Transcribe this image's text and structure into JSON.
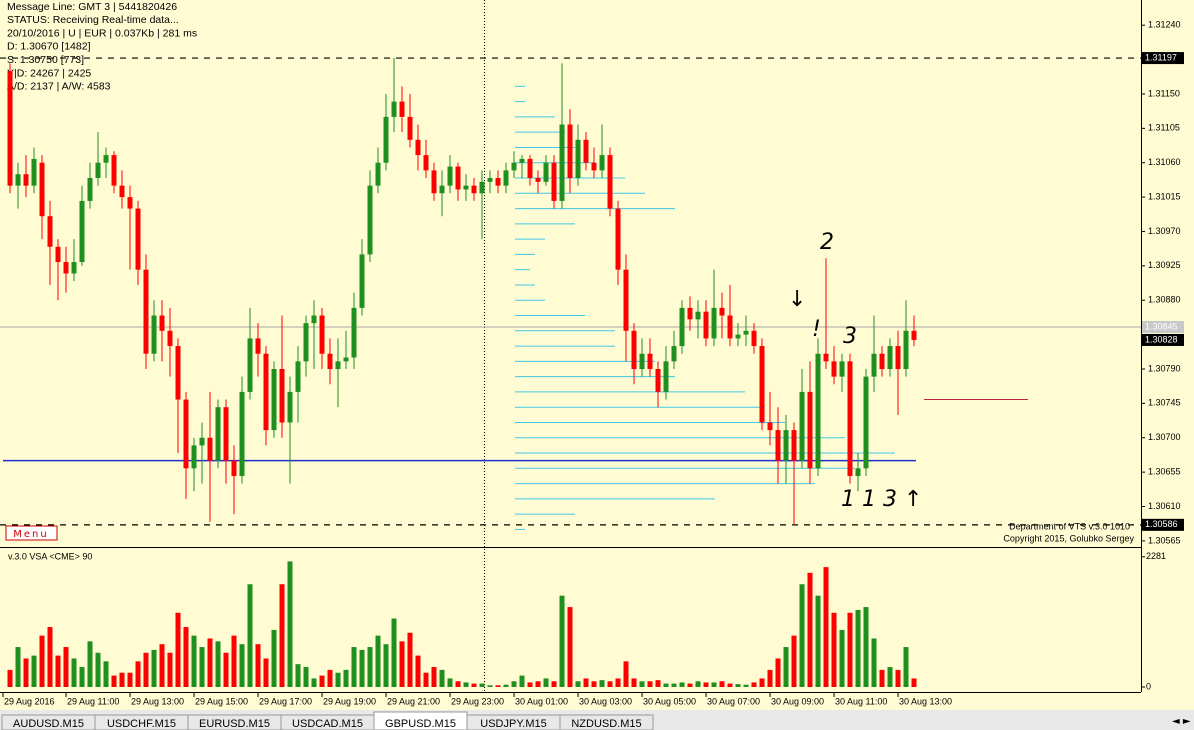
{
  "header": {
    "lines": [
      "Message Line: GMT 3 | 5441820426",
      "STATUS:  Receiving Real-time data...",
      "20/10/2016 | U | EUR | 0.037Kb | 281 ms",
      "D: 1.30670 [1482]",
      "S: 1.30750 [773]",
      "Y|D: 24267 | 2425",
      "A/D: 2137 | A/W: 4583"
    ]
  },
  "menu": "Menu",
  "watermark": [
    "Department of VTS v.3.0 1010",
    "Copyright 2015, Golubko Sergey"
  ],
  "annotations": [
    "↓",
    "!",
    "2",
    "3",
    "1 1 3",
    "↑"
  ],
  "x_labels": [
    "29 Aug 2016",
    "29 Aug 11:00",
    "29 Aug 13:00",
    "29 Aug 15:00",
    "29 Aug 17:00",
    "29 Aug 19:00",
    "29 Aug 21:00",
    "29 Aug 23:00",
    "30 Aug 01:00",
    "30 Aug 03:00",
    "30 Aug 05:00",
    "30 Aug 07:00",
    "30 Aug 09:00",
    "30 Aug 11:00",
    "30 Aug 13:00"
  ],
  "tabs": [
    "AUDUSD.M15",
    "USDCHF.M15",
    "EURUSD.M15",
    "USDCAD.M15",
    "GBPUSD.M15",
    "USDJPY.M15",
    "NZDUSD.M15"
  ],
  "active_tab": "GBPUSD.M15",
  "chart_data": [
    {
      "type": "candlestick",
      "up_color": "#1f8f1f",
      "down_color": "#ff0000",
      "ylim": [
        1.30557,
        1.31273
      ],
      "yticks": [
        {
          "value": 1.3124,
          "label": "1.31240"
        },
        {
          "value": 1.3115,
          "label": "1.31150"
        },
        1.31105,
        {
          "value": 1.3106,
          "label": "1.31060"
        },
        1.31015,
        {
          "value": 1.3097,
          "label": "1.30970"
        },
        1.30925,
        {
          "value": 1.3088,
          "label": "1.30880"
        },
        {
          "value": 1.3079,
          "label": "1.30790"
        },
        1.30745,
        {
          "value": 1.307,
          "label": "1.30700"
        },
        1.30655,
        {
          "value": 1.3061,
          "label": "1.30610"
        },
        1.30565
      ],
      "price_labels": [
        1.31197,
        1.30845,
        1.30828,
        1.30586
      ],
      "levels": [
        {
          "value": 1.3067,
          "color": "#2030d0"
        },
        {
          "value": 1.3075,
          "color": "#c02040"
        }
      ],
      "volume_profile": {
        "color": "#40c8e8",
        "prices": [
          1.3116,
          1.3114,
          1.3112,
          1.311,
          1.3108,
          1.3106,
          1.3104,
          1.3102,
          1.31,
          1.3098,
          1.3096,
          1.3094,
          1.3092,
          1.309,
          1.3088,
          1.3086,
          1.3084,
          1.3082,
          1.308,
          1.3078,
          1.3076,
          1.3074,
          1.3072,
          1.307,
          1.3068,
          1.3066,
          1.3064,
          1.3062,
          1.306,
          1.3058
        ],
        "lengths": [
          10,
          10,
          40,
          50,
          60,
          80,
          110,
          130,
          160,
          60,
          30,
          20,
          15,
          20,
          30,
          70,
          100,
          100,
          140,
          160,
          230,
          250,
          270,
          330,
          380,
          340,
          300,
          200,
          60,
          10
        ]
      },
      "candles": [
        [
          1.3118,
          1.3119,
          1.3102,
          1.3103
        ],
        [
          1.3103,
          1.3106,
          1.31,
          1.31045
        ],
        [
          1.31045,
          1.3107,
          1.31015,
          1.3103
        ],
        [
          1.3103,
          1.3108,
          1.3102,
          1.31065
        ],
        [
          1.3106,
          1.3107,
          1.3096,
          1.3099
        ],
        [
          1.3099,
          1.3101,
          1.309,
          1.3095
        ],
        [
          1.3095,
          1.3096,
          1.3088,
          1.3093
        ],
        [
          1.3093,
          1.3095,
          1.3089,
          1.30915
        ],
        [
          1.30915,
          1.3096,
          1.30905,
          1.3093
        ],
        [
          1.3093,
          1.3103,
          1.30925,
          1.3101
        ],
        [
          1.3101,
          1.3106,
          1.31,
          1.3104
        ],
        [
          1.3104,
          1.311,
          1.3103,
          1.3106
        ],
        [
          1.3106,
          1.3108,
          1.3104,
          1.3107
        ],
        [
          1.3107,
          1.31075,
          1.3102,
          1.3103
        ],
        [
          1.3103,
          1.3105,
          1.31,
          1.31015
        ],
        [
          1.31015,
          1.3103,
          1.3092,
          1.31
        ],
        [
          1.31,
          1.3101,
          1.309,
          1.3092
        ],
        [
          1.3092,
          1.3094,
          1.3079,
          1.3081
        ],
        [
          1.3081,
          1.3088,
          1.308,
          1.3086
        ],
        [
          1.3086,
          1.3088,
          1.308,
          1.3084
        ],
        [
          1.3084,
          1.3087,
          1.3078,
          1.3082
        ],
        [
          1.3082,
          1.3083,
          1.3068,
          1.3075
        ],
        [
          1.3075,
          1.3076,
          1.3062,
          1.3066
        ],
        [
          1.3066,
          1.307,
          1.3063,
          1.3069
        ],
        [
          1.3069,
          1.3072,
          1.3064,
          1.307
        ],
        [
          1.307,
          1.3076,
          1.3059,
          1.3067
        ],
        [
          1.3067,
          1.3075,
          1.3066,
          1.3074
        ],
        [
          1.3074,
          1.3075,
          1.3064,
          1.3067
        ],
        [
          1.3067,
          1.3069,
          1.306,
          1.3065
        ],
        [
          1.3065,
          1.3078,
          1.3064,
          1.3076
        ],
        [
          1.3076,
          1.3087,
          1.3075,
          1.3083
        ],
        [
          1.3083,
          1.3085,
          1.3078,
          1.3081
        ],
        [
          1.3081,
          1.3082,
          1.3069,
          1.3071
        ],
        [
          1.3071,
          1.308,
          1.307,
          1.3079
        ],
        [
          1.3079,
          1.3086,
          1.307,
          1.3072
        ],
        [
          1.3072,
          1.3078,
          1.3064,
          1.3076
        ],
        [
          1.3076,
          1.3082,
          1.3072,
          1.308
        ],
        [
          1.308,
          1.3086,
          1.3078,
          1.3085
        ],
        [
          1.3085,
          1.3088,
          1.3079,
          1.3086
        ],
        [
          1.3086,
          1.3087,
          1.3079,
          1.3081
        ],
        [
          1.3081,
          1.3083,
          1.3077,
          1.3079
        ],
        [
          1.3079,
          1.3083,
          1.3074,
          1.308
        ],
        [
          1.308,
          1.3084,
          1.3079,
          1.30805
        ],
        [
          1.30805,
          1.3089,
          1.3079,
          1.3087
        ],
        [
          1.3087,
          1.3096,
          1.3086,
          1.3094
        ],
        [
          1.3094,
          1.3105,
          1.3093,
          1.3103
        ],
        [
          1.3103,
          1.3108,
          1.3102,
          1.3106
        ],
        [
          1.3106,
          1.3115,
          1.3105,
          1.3112
        ],
        [
          1.3112,
          1.31197,
          1.311,
          1.3114
        ],
        [
          1.3114,
          1.3116,
          1.311,
          1.3112
        ],
        [
          1.3112,
          1.3115,
          1.3108,
          1.3109
        ],
        [
          1.3109,
          1.3111,
          1.3105,
          1.3107
        ],
        [
          1.3107,
          1.3109,
          1.3104,
          1.3105
        ],
        [
          1.3105,
          1.3106,
          1.3101,
          1.3102
        ],
        [
          1.3102,
          1.3105,
          1.3099,
          1.3103
        ],
        [
          1.3103,
          1.3107,
          1.3102,
          1.31055
        ],
        [
          1.31055,
          1.3106,
          1.3101,
          1.31025
        ],
        [
          1.31025,
          1.31045,
          1.3101,
          1.3103
        ],
        [
          1.3103,
          1.3104,
          1.3101,
          1.3102
        ],
        [
          1.3102,
          1.3105,
          1.3096,
          1.31035
        ],
        [
          1.31035,
          1.3105,
          1.3102,
          1.3104
        ],
        [
          1.3104,
          1.3105,
          1.3102,
          1.3103
        ],
        [
          1.3103,
          1.3106,
          1.3102,
          1.3105
        ],
        [
          1.3105,
          1.31075,
          1.3104,
          1.3106
        ],
        [
          1.3106,
          1.3107,
          1.3104,
          1.31065
        ],
        [
          1.31065,
          1.3107,
          1.3103,
          1.3104
        ],
        [
          1.3104,
          1.3105,
          1.3102,
          1.31035
        ],
        [
          1.31035,
          1.3107,
          1.3103,
          1.3106
        ],
        [
          1.3106,
          1.3107,
          1.31,
          1.3101
        ],
        [
          1.3101,
          1.3119,
          1.31,
          1.3111
        ],
        [
          1.3111,
          1.3113,
          1.3102,
          1.3104
        ],
        [
          1.3104,
          1.3111,
          1.3103,
          1.3109
        ],
        [
          1.3109,
          1.311,
          1.3105,
          1.3106
        ],
        [
          1.3106,
          1.3108,
          1.3104,
          1.3105
        ],
        [
          1.3105,
          1.3111,
          1.3104,
          1.3107
        ],
        [
          1.3107,
          1.3108,
          1.3099,
          1.31
        ],
        [
          1.31,
          1.3101,
          1.309,
          1.3092
        ],
        [
          1.3092,
          1.3094,
          1.308,
          1.3084
        ],
        [
          1.3084,
          1.3085,
          1.3077,
          1.3079
        ],
        [
          1.3079,
          1.3083,
          1.3078,
          1.3081
        ],
        [
          1.3081,
          1.3083,
          1.3078,
          1.3079
        ],
        [
          1.3079,
          1.308,
          1.3074,
          1.3076
        ],
        [
          1.3076,
          1.3082,
          1.3075,
          1.308
        ],
        [
          1.308,
          1.3084,
          1.3079,
          1.3082
        ],
        [
          1.3082,
          1.3088,
          1.3081,
          1.3087
        ],
        [
          1.3087,
          1.30885,
          1.3084,
          1.30855
        ],
        [
          1.30855,
          1.3088,
          1.3083,
          1.30865
        ],
        [
          1.30865,
          1.3088,
          1.3082,
          1.3083
        ],
        [
          1.3083,
          1.3092,
          1.3082,
          1.3087
        ],
        [
          1.3087,
          1.3089,
          1.3083,
          1.3086
        ],
        [
          1.3086,
          1.309,
          1.3082,
          1.3083
        ],
        [
          1.3083,
          1.3085,
          1.3082,
          1.30835
        ],
        [
          1.30835,
          1.3086,
          1.3082,
          1.3084
        ],
        [
          1.3084,
          1.3085,
          1.3081,
          1.3082
        ],
        [
          1.3082,
          1.3083,
          1.3071,
          1.3072
        ],
        [
          1.3072,
          1.3076,
          1.3069,
          1.3071
        ],
        [
          1.3071,
          1.3074,
          1.3064,
          1.3067
        ],
        [
          1.3067,
          1.3073,
          1.3064,
          1.3071
        ],
        [
          1.3071,
          1.3072,
          1.30586,
          1.3067
        ],
        [
          1.3067,
          1.3079,
          1.3066,
          1.3076
        ],
        [
          1.3076,
          1.308,
          1.3064,
          1.3066
        ],
        [
          1.3066,
          1.3083,
          1.3065,
          1.3081
        ],
        [
          1.3081,
          1.30935,
          1.3079,
          1.308
        ],
        [
          1.308,
          1.3082,
          1.3077,
          1.3078
        ],
        [
          1.3078,
          1.3081,
          1.3076,
          1.308
        ],
        [
          1.308,
          1.3081,
          1.3064,
          1.3065
        ],
        [
          1.3065,
          1.3068,
          1.3063,
          1.3066
        ],
        [
          1.3066,
          1.3079,
          1.3065,
          1.3078
        ],
        [
          1.3078,
          1.3086,
          1.3076,
          1.3081
        ],
        [
          1.3081,
          1.3082,
          1.3078,
          1.3079
        ],
        [
          1.3079,
          1.3083,
          1.3078,
          1.3082
        ],
        [
          1.3082,
          1.3084,
          1.3073,
          1.3079
        ],
        [
          1.3079,
          1.3088,
          1.3078,
          1.3084
        ],
        [
          1.3084,
          1.3086,
          1.3082,
          1.30828
        ]
      ]
    },
    {
      "type": "bar",
      "title": "v.3.0 VSA <CME> 90",
      "ylim": [
        0,
        2400
      ],
      "yticks": [
        0,
        2281
      ],
      "values": [
        300,
        700,
        500,
        550,
        900,
        1050,
        550,
        700,
        500,
        350,
        800,
        600,
        450,
        200,
        250,
        250,
        450,
        600,
        650,
        750,
        600,
        1300,
        1050,
        900,
        700,
        850,
        800,
        600,
        900,
        750,
        1800,
        750,
        500,
        1000,
        1800,
        2200,
        400,
        350,
        150,
        200,
        300,
        250,
        300,
        700,
        650,
        700,
        900,
        750,
        1200,
        800,
        950,
        550,
        250,
        350,
        300,
        150,
        100,
        80,
        60,
        60,
        30,
        30,
        40,
        100,
        200,
        80,
        100,
        150,
        100,
        1600,
        1400,
        100,
        150,
        100,
        120,
        100,
        150,
        450,
        150,
        100,
        100,
        120,
        60,
        60,
        80,
        60,
        100,
        80,
        80,
        100,
        60,
        50,
        40,
        80,
        150,
        300,
        500,
        700,
        900,
        1800,
        2000,
        1600,
        2100,
        1300,
        1000,
        1300,
        1350,
        1400,
        850,
        300,
        350,
        300,
        700,
        150
      ]
    }
  ]
}
